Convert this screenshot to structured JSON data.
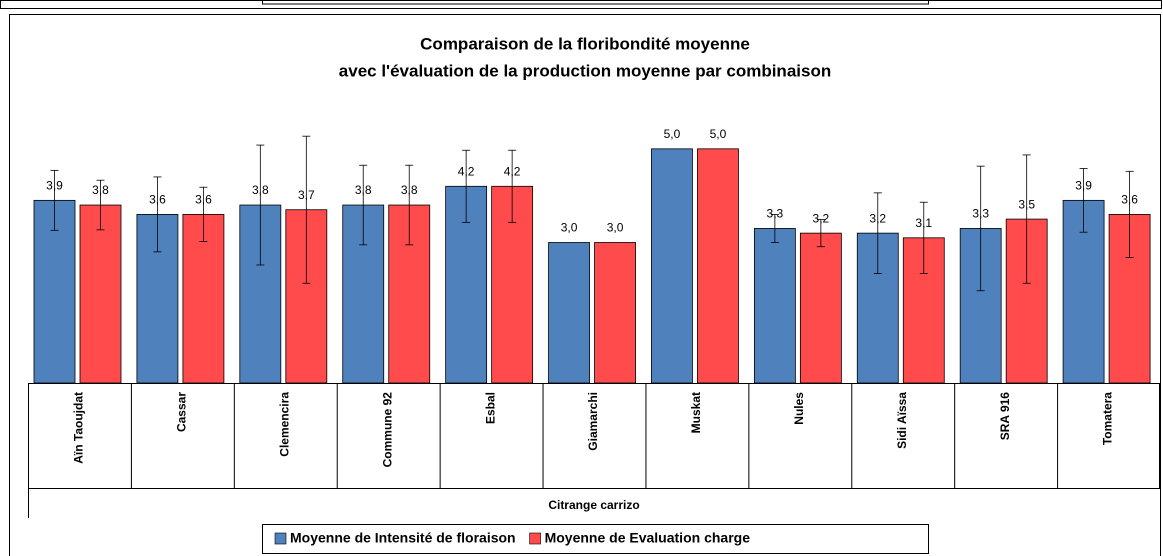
{
  "chart_data": {
    "type": "bar",
    "title": "Comparaison de la floribondité moyenne",
    "subtitle": "avec l'évaluation de la production moyenne par combinaison",
    "group_label": "Citrange carrizo",
    "categories": [
      "Aïn Taoujdat",
      "Cassar",
      "Clemencira",
      "Commune 92",
      "Esbal",
      "Giamarchi",
      "Muskat",
      "Nules",
      "Sidi Aïssa",
      "SRA 916",
      "Tomatera"
    ],
    "series": [
      {
        "name": "Moyenne de Intensité de floraison",
        "color": "#4f81bd",
        "values": [
          3.9,
          3.6,
          3.8,
          3.8,
          4.2,
          3.0,
          5.0,
          3.3,
          3.2,
          3.3,
          3.9
        ],
        "value_labels": [
          "3,9",
          "3,6",
          "3,8",
          "3,8",
          "4,2",
          "3,0",
          "5,0",
          "3,3",
          "3,2",
          "3,3",
          "3,9"
        ],
        "errors": [
          0.64,
          0.8,
          1.28,
          0.85,
          0.77,
          null,
          null,
          0.3,
          0.86,
          1.33,
          0.68
        ]
      },
      {
        "name": "Moyenne de Evaluation charge",
        "color": "#ff4b4b",
        "values": [
          3.8,
          3.6,
          3.7,
          3.8,
          4.2,
          3.0,
          5.0,
          3.2,
          3.1,
          3.5,
          3.6
        ],
        "value_labels": [
          "3,8",
          "3,6",
          "3,7",
          "3,8",
          "4,2",
          "3,0",
          "5,0",
          "3,2",
          "3,1",
          "3,5",
          "3,6"
        ],
        "errors": [
          0.53,
          0.58,
          1.57,
          0.85,
          0.77,
          null,
          null,
          0.29,
          0.76,
          1.37,
          0.92
        ]
      }
    ],
    "ylim": [
      0,
      6
    ],
    "grid": false,
    "legend": "bottom"
  }
}
